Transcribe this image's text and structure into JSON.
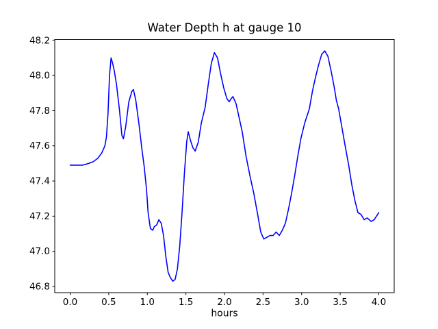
{
  "chart_data": {
    "type": "line",
    "title": "Water Depth h at gauge 10",
    "xlabel": "hours",
    "ylabel": "",
    "x_tick_labels": [
      "0.0",
      "0.5",
      "1.0",
      "1.5",
      "2.0",
      "2.5",
      "3.0",
      "3.5",
      "4.0"
    ],
    "y_tick_labels": [
      "46.8",
      "47.0",
      "47.2",
      "47.4",
      "47.6",
      "47.8",
      "48.0",
      "48.2"
    ],
    "xlim": [
      -0.2,
      4.2
    ],
    "ylim": [
      46.765,
      48.205
    ],
    "grid": false,
    "legend": "none",
    "line_color": "#0000ff",
    "background_color": "#ffffff",
    "series": [
      {
        "name": "h",
        "points": [
          [
            0.0,
            47.49
          ],
          [
            0.08,
            47.49
          ],
          [
            0.16,
            47.49
          ],
          [
            0.24,
            47.5
          ],
          [
            0.3,
            47.51
          ],
          [
            0.36,
            47.53
          ],
          [
            0.41,
            47.56
          ],
          [
            0.45,
            47.6
          ],
          [
            0.47,
            47.65
          ],
          [
            0.49,
            47.78
          ],
          [
            0.51,
            48.0
          ],
          [
            0.53,
            48.1
          ],
          [
            0.55,
            48.07
          ],
          [
            0.57,
            48.03
          ],
          [
            0.6,
            47.95
          ],
          [
            0.64,
            47.8
          ],
          [
            0.67,
            47.66
          ],
          [
            0.69,
            47.64
          ],
          [
            0.72,
            47.71
          ],
          [
            0.76,
            47.85
          ],
          [
            0.8,
            47.91
          ],
          [
            0.82,
            47.92
          ],
          [
            0.85,
            47.86
          ],
          [
            0.89,
            47.73
          ],
          [
            0.93,
            47.58
          ],
          [
            0.96,
            47.48
          ],
          [
            0.99,
            47.35
          ],
          [
            1.01,
            47.22
          ],
          [
            1.04,
            47.13
          ],
          [
            1.07,
            47.12
          ],
          [
            1.09,
            47.14
          ],
          [
            1.12,
            47.15
          ],
          [
            1.15,
            47.18
          ],
          [
            1.18,
            47.16
          ],
          [
            1.21,
            47.09
          ],
          [
            1.24,
            46.97
          ],
          [
            1.27,
            46.88
          ],
          [
            1.3,
            46.85
          ],
          [
            1.33,
            46.83
          ],
          [
            1.36,
            46.84
          ],
          [
            1.39,
            46.9
          ],
          [
            1.42,
            47.03
          ],
          [
            1.45,
            47.22
          ],
          [
            1.48,
            47.44
          ],
          [
            1.51,
            47.62
          ],
          [
            1.53,
            47.68
          ],
          [
            1.56,
            47.63
          ],
          [
            1.59,
            47.59
          ],
          [
            1.62,
            47.57
          ],
          [
            1.66,
            47.62
          ],
          [
            1.7,
            47.73
          ],
          [
            1.75,
            47.82
          ],
          [
            1.79,
            47.95
          ],
          [
            1.83,
            48.07
          ],
          [
            1.87,
            48.13
          ],
          [
            1.91,
            48.1
          ],
          [
            1.95,
            48.01
          ],
          [
            1.99,
            47.93
          ],
          [
            2.03,
            47.87
          ],
          [
            2.06,
            47.85
          ],
          [
            2.09,
            47.87
          ],
          [
            2.11,
            47.88
          ],
          [
            2.15,
            47.84
          ],
          [
            2.19,
            47.76
          ],
          [
            2.23,
            47.68
          ],
          [
            2.28,
            47.54
          ],
          [
            2.33,
            47.43
          ],
          [
            2.38,
            47.33
          ],
          [
            2.43,
            47.21
          ],
          [
            2.47,
            47.11
          ],
          [
            2.51,
            47.07
          ],
          [
            2.55,
            47.08
          ],
          [
            2.59,
            47.09
          ],
          [
            2.63,
            47.09
          ],
          [
            2.67,
            47.11
          ],
          [
            2.71,
            47.09
          ],
          [
            2.75,
            47.12
          ],
          [
            2.79,
            47.16
          ],
          [
            2.83,
            47.24
          ],
          [
            2.87,
            47.33
          ],
          [
            2.91,
            47.43
          ],
          [
            2.95,
            47.54
          ],
          [
            2.99,
            47.64
          ],
          [
            3.04,
            47.73
          ],
          [
            3.1,
            47.81
          ],
          [
            3.14,
            47.91
          ],
          [
            3.18,
            47.99
          ],
          [
            3.22,
            48.06
          ],
          [
            3.26,
            48.12
          ],
          [
            3.3,
            48.14
          ],
          [
            3.34,
            48.11
          ],
          [
            3.38,
            48.03
          ],
          [
            3.42,
            47.94
          ],
          [
            3.45,
            47.86
          ],
          [
            3.48,
            47.81
          ],
          [
            3.52,
            47.71
          ],
          [
            3.56,
            47.61
          ],
          [
            3.61,
            47.49
          ],
          [
            3.65,
            47.38
          ],
          [
            3.69,
            47.29
          ],
          [
            3.73,
            47.22
          ],
          [
            3.77,
            47.21
          ],
          [
            3.81,
            47.18
          ],
          [
            3.85,
            47.19
          ],
          [
            3.9,
            47.17
          ],
          [
            3.94,
            47.18
          ],
          [
            3.97,
            47.2
          ],
          [
            4.0,
            47.22
          ]
        ]
      }
    ]
  }
}
